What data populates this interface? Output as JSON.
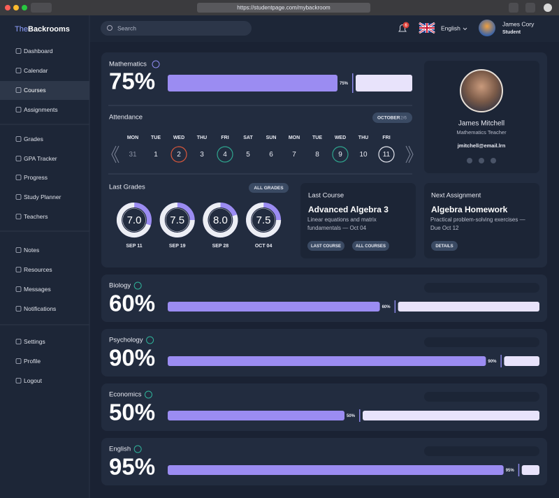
{
  "browser": {
    "url": "https://studentpage.com/mybackroom"
  },
  "brand": {
    "prefix": "The",
    "name": "Backrooms"
  },
  "header": {
    "search_placeholder": "Search",
    "notification_count": 6,
    "language": "English",
    "user": {
      "name": "James Cory",
      "role": "Student"
    }
  },
  "nav": [
    [
      "Dashboard",
      "Calendar",
      "Courses",
      "Assignments"
    ],
    [
      "Grades",
      "GPA Tracker",
      "Progress",
      "Study Planner",
      "Teachers"
    ],
    [
      "Notes",
      "Resources",
      "Messages",
      "Notifications"
    ],
    [
      "Settings",
      "Profile",
      "Logout"
    ]
  ],
  "nav_active": [
    0,
    2
  ],
  "main_course": {
    "name": "Mathematics",
    "progress": {
      "value": 75,
      "label": "75%"
    }
  },
  "attendance": {
    "title": "Attendance",
    "month": "OCTOBER",
    "count": "2/6",
    "days": [
      {
        "day": "MON",
        "date": 31
      },
      {
        "day": "TUE",
        "date": 1
      },
      {
        "day": "WED",
        "date": 2,
        "ring": "#d9573b"
      },
      {
        "day": "THU",
        "date": 3
      },
      {
        "day": "FRI",
        "date": 4,
        "ring": "#2fa58e"
      },
      {
        "day": "SAT",
        "date": 5
      },
      {
        "day": "SUN",
        "date": 6
      },
      {
        "day": "MON",
        "date": 7
      },
      {
        "day": "TUE",
        "date": 8
      },
      {
        "day": "WED",
        "date": 9,
        "ring": "#2fa58e"
      },
      {
        "day": "THU",
        "date": 10
      },
      {
        "day": "FRI",
        "date": 11,
        "ring": "#e4e6ee"
      }
    ]
  },
  "last_grades": {
    "title": "Last Grades",
    "button": "ALL GRADES",
    "grades": [
      {
        "score": {
          "value": 7,
          "label": "7.0"
        },
        "date": "SEP 11"
      },
      {
        "score": 7.5,
        "date": "SEP 19"
      },
      {
        "score": {
          "value": 8,
          "label": "8.0"
        },
        "date": "SEP 28"
      },
      {
        "score": 7.5,
        "date": "OCT 04"
      }
    ]
  },
  "teacher": {
    "name": "James Mitchell",
    "role": "Mathematics Teacher",
    "email": "jmitchell@email.lrn"
  },
  "last_course": {
    "title": "Last Course",
    "name": "Advanced Algebra 3",
    "description": "Linear equations and matrix fundamentals — Oct 04",
    "buttons": [
      "LAST COURSE",
      "ALL COURSES"
    ]
  },
  "next_assignment": {
    "title": "Next Assignment",
    "name": "Algebra Homework",
    "description": "Practical problem-solving exercises — Due Oct 12",
    "button": "DETAILS"
  },
  "courses": [
    {
      "name": "Biology",
      "progress": {
        "value": 60,
        "label": "60%"
      }
    },
    {
      "name": "Psychology",
      "progress": {
        "value": 90,
        "label": "90%"
      }
    },
    {
      "name": "Economics",
      "progress": {
        "value": 50,
        "label": "50%"
      }
    },
    {
      "name": "English",
      "progress": {
        "value": 95,
        "label": "95%"
      }
    }
  ]
}
